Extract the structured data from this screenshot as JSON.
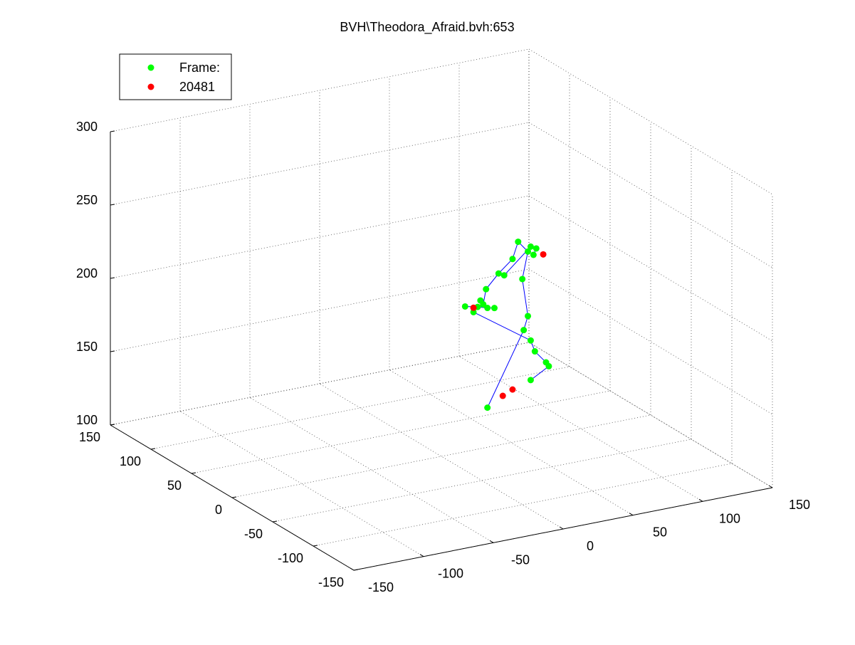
{
  "chart_data": {
    "type": "scatter3d",
    "title": "BVH\\Theodora_Afraid.bvh:653",
    "xlim": [
      -150,
      150
    ],
    "ylim": [
      -150,
      150
    ],
    "zlim": [
      100,
      300
    ],
    "xticks": [
      -150,
      -100,
      -50,
      0,
      50,
      100,
      150
    ],
    "yticks": [
      -150,
      -100,
      -50,
      0,
      50,
      100,
      150
    ],
    "zticks": [
      100,
      150,
      200,
      250,
      300
    ],
    "grid": true,
    "legend": "northwest",
    "line_color": "#0000ff",
    "series": [
      {
        "name": "Frame:",
        "color": "#00ff00",
        "x": [
          33,
          59,
          62,
          58,
          62,
          55,
          51,
          41,
          32,
          30,
          28,
          null,
          17,
          26,
          33,
          38,
          null,
          23,
          64,
          67,
          75,
          77,
          64,
          null,
          45,
          64,
          68,
          66
        ],
        "y": [
          0,
          0,
          0,
          0,
          0,
          0,
          0,
          0,
          0,
          0,
          0,
          null,
          0,
          0,
          0,
          0,
          null,
          0,
          0,
          0,
          0,
          0,
          0,
          null,
          0,
          0,
          0,
          0
        ],
        "z": [
          127,
          175,
          184,
          210,
          228,
          236,
          225,
          217,
          208,
          198,
          201,
          null,
          199,
          197,
          195,
          194,
          null,
          194,
          167,
          159,
          150,
          147,
          140,
          null,
          215,
          231,
          229,
          225
        ]
      },
      {
        "name": "20481",
        "color": "#ff0000",
        "x": [
          73,
          23,
          51,
          44
        ],
        "y": [
          0,
          0,
          0,
          0
        ],
        "z": [
          224,
          197,
          136,
          133
        ]
      }
    ]
  }
}
